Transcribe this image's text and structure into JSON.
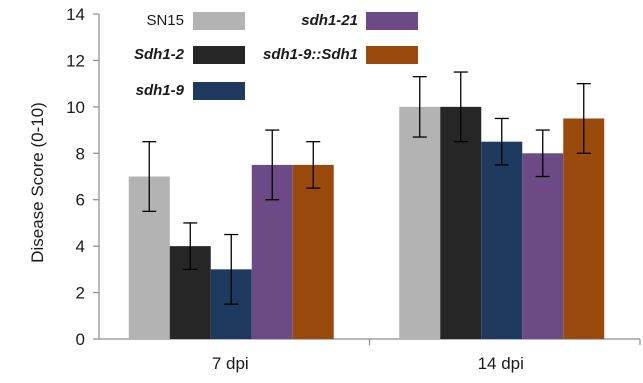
{
  "chart_data": {
    "type": "bar",
    "ylabel": "Disease Score (0-10)",
    "xlabel": "",
    "ylim": [
      0,
      14
    ],
    "yticks": [
      0,
      2,
      4,
      6,
      8,
      10,
      12,
      14
    ],
    "grid": false,
    "legend_position": "top-left",
    "categories": [
      "7 dpi",
      "14 dpi"
    ],
    "series": [
      {
        "name": "SN15",
        "italic": false,
        "color": "#b3b3b3",
        "values": [
          7.0,
          10.0
        ],
        "errors": [
          1.5,
          1.3
        ]
      },
      {
        "name": "Sdh1-2",
        "italic": true,
        "color": "#262626",
        "values": [
          4.0,
          10.0
        ],
        "errors": [
          1.0,
          1.5
        ]
      },
      {
        "name": "sdh1-9",
        "italic": true,
        "color": "#1e3a5f",
        "values": [
          3.0,
          8.5
        ],
        "errors": [
          1.5,
          1.0
        ]
      },
      {
        "name": "sdh1-21",
        "italic": true,
        "color": "#6b4a85",
        "values": [
          7.5,
          8.0
        ],
        "errors": [
          1.5,
          1.0
        ]
      },
      {
        "name": "sdh1-9::Sdh1",
        "italic": true,
        "color": "#9a4a0c",
        "values": [
          7.5,
          9.5
        ],
        "errors": [
          1.0,
          1.5
        ]
      }
    ]
  }
}
